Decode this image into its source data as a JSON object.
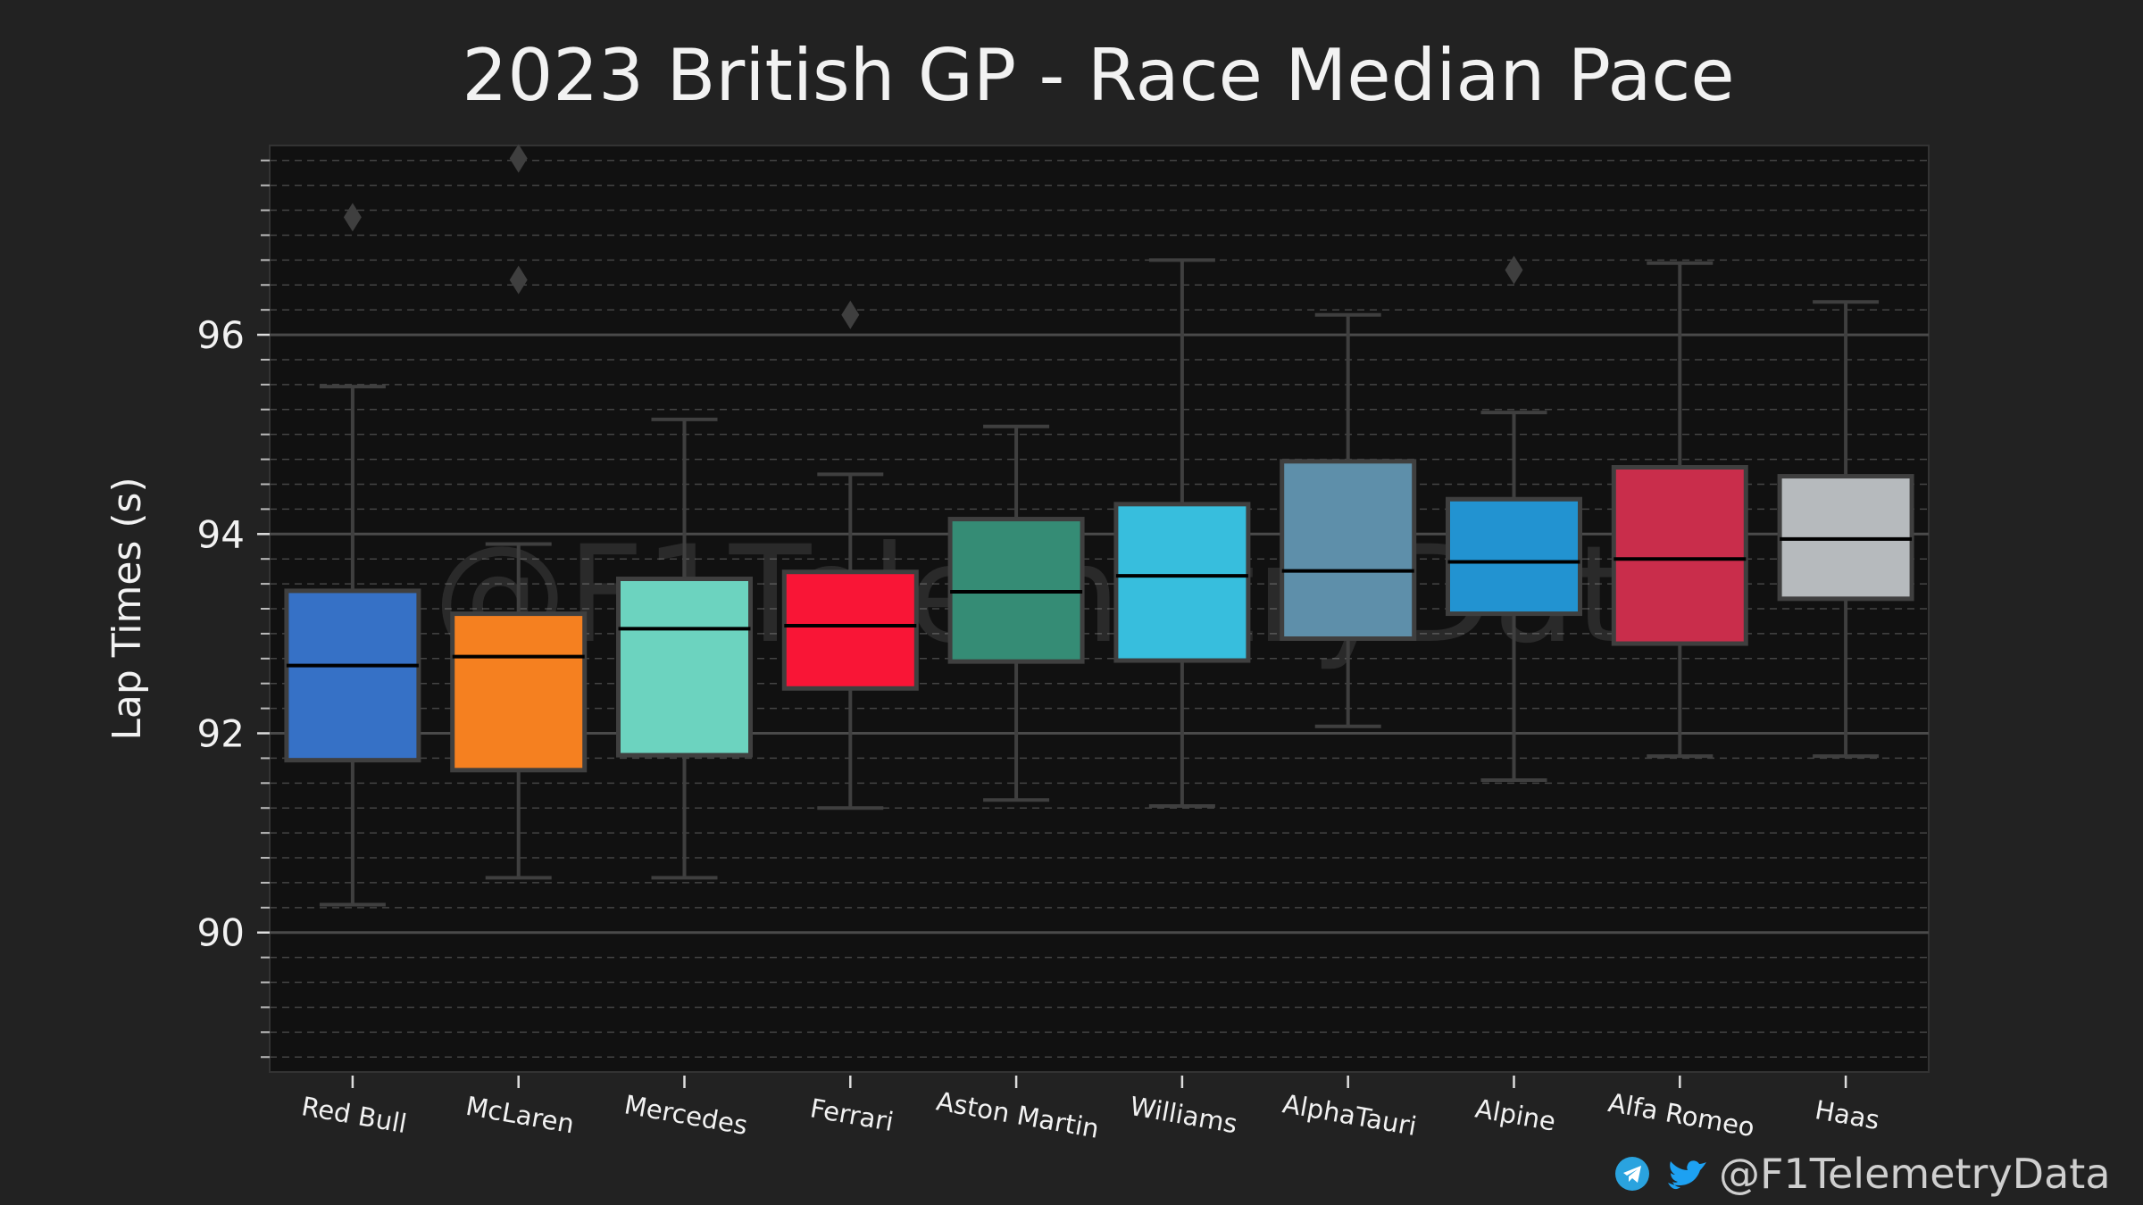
{
  "chart_data": {
    "type": "box",
    "title": "2023 British GP - Race Median Pace",
    "xlabel": "",
    "ylabel": "Lap Times (s)",
    "ylim": [
      88.6,
      97.9
    ],
    "yticks": [
      90,
      92,
      94,
      96
    ],
    "grid": "major solid, minor dashed",
    "categories": [
      "Red Bull",
      "McLaren",
      "Mercedes",
      "Ferrari",
      "Aston Martin",
      "Williams",
      "AlphaTauri",
      "Alpine",
      "Alfa Romeo",
      "Haas"
    ],
    "boxes": [
      {
        "team": "Red Bull",
        "color": "#3671C6",
        "whisker_low": 90.28,
        "q1": 91.73,
        "median": 92.68,
        "q3": 93.43,
        "whisker_high": 95.48,
        "outliers": [
          97.18
        ]
      },
      {
        "team": "McLaren",
        "color": "#F58020",
        "whisker_low": 90.55,
        "q1": 91.63,
        "median": 92.77,
        "q3": 93.2,
        "whisker_high": 93.9,
        "outliers": [
          96.55,
          97.77
        ]
      },
      {
        "team": "Mercedes",
        "color": "#6CD3BF",
        "whisker_low": 90.55,
        "q1": 91.78,
        "median": 93.05,
        "q3": 93.55,
        "whisker_high": 95.15,
        "outliers": []
      },
      {
        "team": "Ferrari",
        "color": "#F91536",
        "whisker_low": 91.25,
        "q1": 92.45,
        "median": 93.08,
        "q3": 93.62,
        "whisker_high": 94.6,
        "outliers": [
          96.2
        ]
      },
      {
        "team": "Aston Martin",
        "color": "#358C75",
        "whisker_low": 91.33,
        "q1": 92.72,
        "median": 93.42,
        "q3": 94.15,
        "whisker_high": 95.08,
        "outliers": []
      },
      {
        "team": "Williams",
        "color": "#37BEDD",
        "whisker_low": 91.27,
        "q1": 92.73,
        "median": 93.58,
        "q3": 94.3,
        "whisker_high": 96.75,
        "outliers": []
      },
      {
        "team": "AlphaTauri",
        "color": "#5E8FAA",
        "whisker_low": 92.07,
        "q1": 92.95,
        "median": 93.63,
        "q3": 94.73,
        "whisker_high": 96.2,
        "outliers": []
      },
      {
        "team": "Alpine",
        "color": "#2293D1",
        "whisker_low": 91.53,
        "q1": 93.2,
        "median": 93.72,
        "q3": 94.35,
        "whisker_high": 95.22,
        "outliers": [
          96.65
        ]
      },
      {
        "team": "Alfa Romeo",
        "color": "#C92D4B",
        "whisker_low": 91.77,
        "q1": 92.9,
        "median": 93.75,
        "q3": 94.67,
        "whisker_high": 96.72,
        "outliers": []
      },
      {
        "team": "Haas",
        "color": "#B6BABD",
        "whisker_low": 91.77,
        "q1": 93.35,
        "median": 93.95,
        "q3": 94.58,
        "whisker_high": 96.33,
        "outliers": []
      }
    ]
  },
  "watermark": "@F1TelemetryData",
  "credit": {
    "handle": "@F1TelemetryData",
    "telegram_icon": "telegram-icon",
    "twitter_icon": "twitter-icon",
    "telegram_color": "#2AA3DF",
    "twitter_color": "#1DA1F2"
  },
  "colors": {
    "figure_bg": "#222222",
    "plot_bg": "#111111",
    "box_edge": "#3f3f3f",
    "median": "#000000"
  }
}
